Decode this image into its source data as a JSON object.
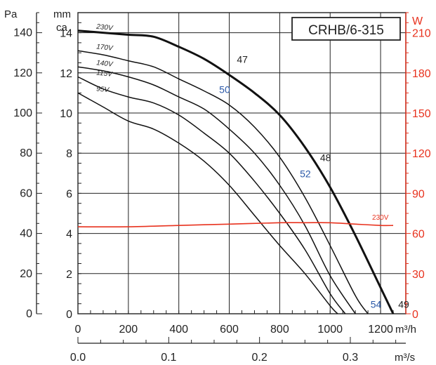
{
  "chart_data": {
    "type": "line",
    "model": "CRHB/6-315",
    "units": {
      "pa": "Pa",
      "mmca_line1": "mm",
      "mmca_line2": "ca",
      "watt": "W",
      "flow_h": "m³/h",
      "flow_s": "m³/s"
    },
    "x_range": [
      0,
      1300
    ],
    "y_mmca_range": [
      0,
      15
    ],
    "x_ticks": [
      0,
      200,
      400,
      600,
      800,
      1000,
      1200
    ],
    "x2_ticks": [
      "0.0",
      "0.1",
      "0.2",
      "0.3"
    ],
    "x2_tick_values": [
      0,
      0.1,
      0.2,
      0.3
    ],
    "y_pa_ticks": [
      0,
      20,
      40,
      60,
      80,
      100,
      120,
      140
    ],
    "y_mmca_ticks": [
      0,
      2,
      4,
      6,
      8,
      10,
      12,
      14
    ],
    "y_w_ticks": [
      0,
      30,
      60,
      90,
      120,
      150,
      180,
      210
    ],
    "series": [
      {
        "name": "230V",
        "bold": true,
        "color": "#111111",
        "x": [
          0,
          100,
          200,
          300,
          400,
          500,
          600,
          700,
          800,
          900,
          1000,
          1100,
          1200,
          1250
        ],
        "y": [
          14.1,
          14.0,
          13.9,
          13.8,
          13.3,
          12.7,
          11.9,
          11.0,
          9.9,
          8.3,
          6.3,
          3.9,
          1.3,
          0
        ]
      },
      {
        "name": "170V",
        "bold": false,
        "color": "#111111",
        "x": [
          0,
          100,
          200,
          300,
          400,
          500,
          600,
          700,
          800,
          900,
          1000,
          1100,
          1150
        ],
        "y": [
          13.1,
          12.9,
          12.6,
          12.3,
          11.7,
          11.1,
          10.4,
          9.3,
          7.8,
          5.8,
          3.4,
          0.9,
          0
        ]
      },
      {
        "name": "140V",
        "bold": false,
        "color": "#111111",
        "x": [
          0,
          100,
          200,
          300,
          400,
          500,
          600,
          700,
          800,
          900,
          1000,
          1100
        ],
        "y": [
          12.3,
          12.1,
          11.8,
          11.4,
          10.8,
          10.2,
          9.2,
          8.0,
          6.4,
          4.4,
          1.9,
          0
        ]
      },
      {
        "name": "115V",
        "bold": false,
        "color": "#111111",
        "x": [
          0,
          100,
          200,
          300,
          400,
          500,
          600,
          700,
          800,
          900,
          1000,
          1060
        ],
        "y": [
          11.8,
          11.2,
          10.8,
          10.5,
          9.9,
          9.0,
          8.0,
          6.6,
          5.0,
          3.2,
          1.0,
          0
        ]
      },
      {
        "name": "95V",
        "bold": false,
        "color": "#111111",
        "x": [
          0,
          100,
          200,
          300,
          400,
          500,
          600,
          700,
          800,
          900,
          1000,
          1030
        ],
        "y": [
          11.0,
          10.3,
          9.6,
          9.2,
          8.5,
          7.6,
          6.4,
          4.9,
          3.4,
          2.0,
          0.4,
          0
        ]
      },
      {
        "name": "230V",
        "bold": false,
        "color": "#e8321e",
        "power": true,
        "x": [
          0,
          200,
          400,
          600,
          800,
          900,
          1000,
          1100,
          1200,
          1250
        ],
        "y_w": [
          65,
          65,
          66,
          67,
          68,
          68,
          68,
          67,
          66,
          66
        ]
      }
    ],
    "annotations": [
      {
        "text": "47",
        "color": "black",
        "x": 630,
        "y": 12.5
      },
      {
        "text": "50",
        "color": "blue",
        "x": 560,
        "y": 11.0
      },
      {
        "text": "48",
        "color": "black",
        "x": 960,
        "y": 7.6
      },
      {
        "text": "52",
        "color": "blue",
        "x": 880,
        "y": 6.8
      },
      {
        "text": "54",
        "color": "blue",
        "x": 1160,
        "y": 0.3
      },
      {
        "text": "49",
        "color": "black",
        "x": 1270,
        "y": 0.3
      }
    ],
    "grid": true
  }
}
